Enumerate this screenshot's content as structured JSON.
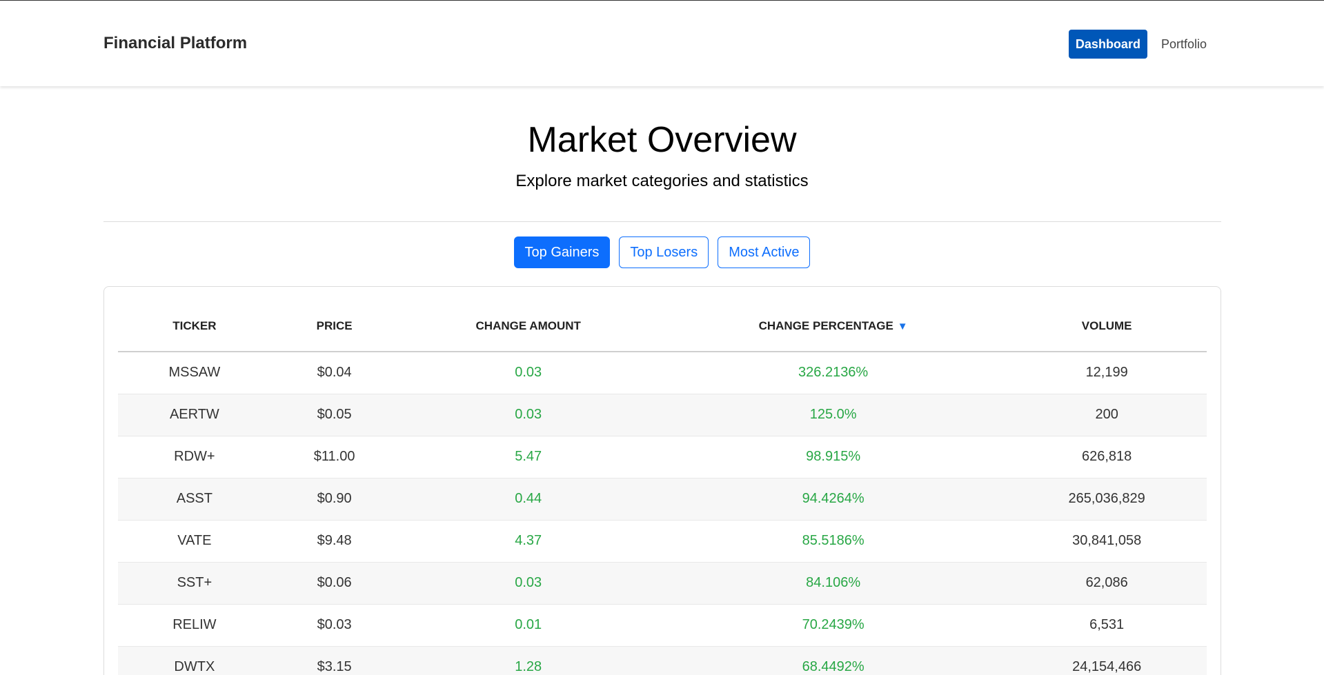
{
  "header": {
    "brand": "Financial Platform",
    "nav": [
      {
        "label": "Dashboard",
        "active": true
      },
      {
        "label": "Portfolio",
        "active": false
      }
    ]
  },
  "hero": {
    "title": "Market Overview",
    "subtitle": "Explore market categories and statistics"
  },
  "tabs": [
    {
      "label": "Top Gainers",
      "active": true
    },
    {
      "label": "Top Losers",
      "active": false
    },
    {
      "label": "Most Active",
      "active": false
    }
  ],
  "table": {
    "columns": [
      "Ticker",
      "Price",
      "Change Amount",
      "Change Percentage",
      "Volume"
    ],
    "sort_indicator": "▼",
    "rows": [
      [
        "MSSAW",
        "$0.04",
        "0.03",
        "326.2136%",
        "12,199"
      ],
      [
        "AERTW",
        "$0.05",
        "0.03",
        "125.0%",
        "200"
      ],
      [
        "RDW+",
        "$11.00",
        "5.47",
        "98.915%",
        "626,818"
      ],
      [
        "ASST",
        "$0.90",
        "0.44",
        "94.4264%",
        "265,036,829"
      ],
      [
        "VATE",
        "$9.48",
        "4.37",
        "85.5186%",
        "30,841,058"
      ],
      [
        "SST+",
        "$0.06",
        "0.03",
        "84.106%",
        "62,086"
      ],
      [
        "RELIW",
        "$0.03",
        "0.01",
        "70.2439%",
        "6,531"
      ],
      [
        "DWTX",
        "$3.15",
        "1.28",
        "68.4492%",
        "24,154,466"
      ]
    ]
  },
  "colors": {
    "primary": "#0d6efd",
    "nav_active": "#0057b8",
    "positive": "#28a745"
  }
}
